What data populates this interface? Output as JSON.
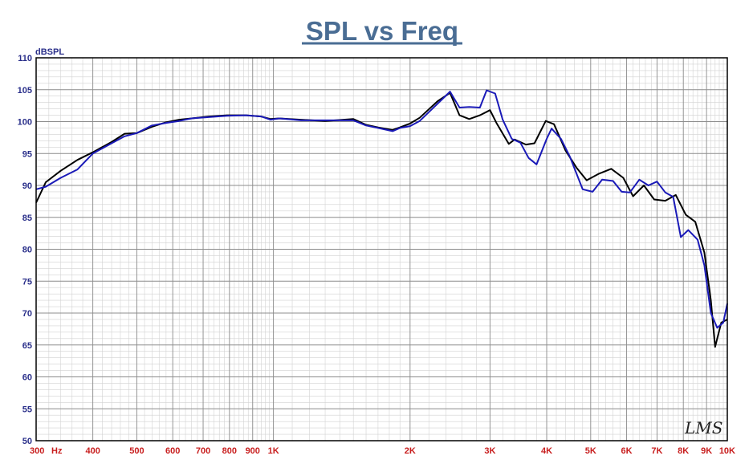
{
  "chart_data": {
    "type": "line",
    "title": "SPL vs Freq",
    "ylabel": "dBSPL",
    "xlabel": "",
    "xscale": "log",
    "xlim": [
      300,
      10000
    ],
    "ylim": [
      50,
      110
    ],
    "grid": true,
    "yticks": [
      110,
      105,
      100,
      95,
      90,
      85,
      80,
      75,
      70,
      65,
      60,
      55,
      50
    ],
    "xticks": [
      {
        "value": 300,
        "label": "300"
      },
      {
        "value": 400,
        "label": "400"
      },
      {
        "value": 500,
        "label": "500"
      },
      {
        "value": 600,
        "label": "600"
      },
      {
        "value": 700,
        "label": "700"
      },
      {
        "value": 800,
        "label": "800"
      },
      {
        "value": 900,
        "label": "900"
      },
      {
        "value": 1000,
        "label": "1K"
      },
      {
        "value": 2000,
        "label": "2K"
      },
      {
        "value": 3000,
        "label": "3K"
      },
      {
        "value": 4000,
        "label": "4K"
      },
      {
        "value": 5000,
        "label": "5K"
      },
      {
        "value": 6000,
        "label": "6K"
      },
      {
        "value": 7000,
        "label": "7K"
      },
      {
        "value": 8000,
        "label": "8K"
      },
      {
        "value": 9000,
        "label": "9K"
      },
      {
        "value": 10000,
        "label": "10K"
      }
    ],
    "x_unit_label": "Hz",
    "watermark": "LMS",
    "series": [
      {
        "color": "#000000",
        "points": [
          [
            300,
            87.3
          ],
          [
            315,
            90.5
          ],
          [
            340,
            92.3
          ],
          [
            370,
            94.0
          ],
          [
            400,
            95.2
          ],
          [
            440,
            96.8
          ],
          [
            470,
            98.1
          ],
          [
            500,
            98.2
          ],
          [
            540,
            99.2
          ],
          [
            580,
            99.9
          ],
          [
            620,
            100.3
          ],
          [
            660,
            100.5
          ],
          [
            720,
            100.8
          ],
          [
            790,
            101.0
          ],
          [
            870,
            101.0
          ],
          [
            940,
            100.8
          ],
          [
            985,
            100.4
          ],
          [
            1030,
            100.5
          ],
          [
            1150,
            100.3
          ],
          [
            1300,
            100.1
          ],
          [
            1500,
            100.4
          ],
          [
            1600,
            99.5
          ],
          [
            1700,
            99.1
          ],
          [
            1830,
            98.7
          ],
          [
            1900,
            99.1
          ],
          [
            2000,
            99.7
          ],
          [
            2100,
            100.6
          ],
          [
            2300,
            103.2
          ],
          [
            2450,
            104.5
          ],
          [
            2570,
            101.0
          ],
          [
            2700,
            100.4
          ],
          [
            2850,
            101.0
          ],
          [
            3000,
            101.8
          ],
          [
            3100,
            99.8
          ],
          [
            3300,
            96.5
          ],
          [
            3400,
            97.2
          ],
          [
            3600,
            96.4
          ],
          [
            3760,
            96.6
          ],
          [
            3980,
            100.1
          ],
          [
            4150,
            99.6
          ],
          [
            4400,
            95.5
          ],
          [
            4650,
            92.8
          ],
          [
            4900,
            90.8
          ],
          [
            5200,
            91.8
          ],
          [
            5550,
            92.6
          ],
          [
            5900,
            91.2
          ],
          [
            6200,
            88.3
          ],
          [
            6550,
            90.0
          ],
          [
            6900,
            87.8
          ],
          [
            7300,
            87.6
          ],
          [
            7700,
            88.5
          ],
          [
            8100,
            85.4
          ],
          [
            8500,
            84.3
          ],
          [
            8900,
            79.5
          ],
          [
            9200,
            72.0
          ],
          [
            9400,
            64.7
          ],
          [
            9700,
            68.5
          ],
          [
            10000,
            69.0
          ]
        ]
      },
      {
        "color": "#1a1ab8",
        "points": [
          [
            300,
            89.4
          ],
          [
            315,
            89.8
          ],
          [
            340,
            91.2
          ],
          [
            370,
            92.5
          ],
          [
            400,
            95.0
          ],
          [
            440,
            96.6
          ],
          [
            470,
            97.7
          ],
          [
            500,
            98.2
          ],
          [
            540,
            99.4
          ],
          [
            580,
            99.8
          ],
          [
            620,
            100.1
          ],
          [
            660,
            100.5
          ],
          [
            720,
            100.7
          ],
          [
            790,
            100.9
          ],
          [
            870,
            101.0
          ],
          [
            940,
            100.8
          ],
          [
            985,
            100.3
          ],
          [
            1030,
            100.5
          ],
          [
            1150,
            100.2
          ],
          [
            1300,
            100.2
          ],
          [
            1500,
            100.2
          ],
          [
            1600,
            99.4
          ],
          [
            1700,
            99.0
          ],
          [
            1830,
            98.5
          ],
          [
            1900,
            99.0
          ],
          [
            2000,
            99.3
          ],
          [
            2100,
            100.1
          ],
          [
            2300,
            102.8
          ],
          [
            2450,
            104.7
          ],
          [
            2570,
            102.2
          ],
          [
            2700,
            102.3
          ],
          [
            2850,
            102.2
          ],
          [
            2950,
            104.9
          ],
          [
            3080,
            104.4
          ],
          [
            3200,
            100.3
          ],
          [
            3350,
            97.3
          ],
          [
            3500,
            96.7
          ],
          [
            3650,
            94.3
          ],
          [
            3800,
            93.3
          ],
          [
            4000,
            97.3
          ],
          [
            4100,
            98.9
          ],
          [
            4300,
            97.3
          ],
          [
            4500,
            94.5
          ],
          [
            4800,
            89.4
          ],
          [
            5050,
            89.0
          ],
          [
            5300,
            90.9
          ],
          [
            5600,
            90.7
          ],
          [
            5850,
            89.0
          ],
          [
            6100,
            88.9
          ],
          [
            6400,
            90.9
          ],
          [
            6700,
            90.0
          ],
          [
            7000,
            90.6
          ],
          [
            7300,
            88.9
          ],
          [
            7600,
            88.2
          ],
          [
            7900,
            81.9
          ],
          [
            8200,
            83.0
          ],
          [
            8600,
            81.5
          ],
          [
            8900,
            77.5
          ],
          [
            9200,
            70.0
          ],
          [
            9500,
            67.7
          ],
          [
            9800,
            68.5
          ],
          [
            10000,
            71.5
          ]
        ]
      }
    ]
  }
}
